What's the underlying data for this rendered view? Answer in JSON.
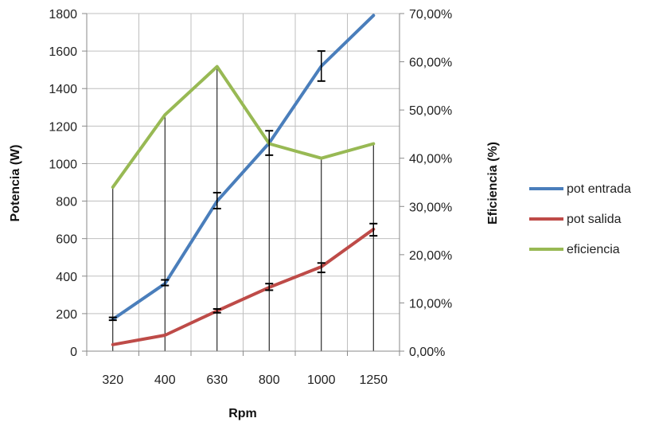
{
  "chart_data": {
    "type": "line",
    "categories": [
      "320",
      "400",
      "630",
      "800",
      "1000",
      "1250"
    ],
    "xlabel": "Rpm",
    "ylabel": "Potencia (W)",
    "y2label": "Eficiencia (%)",
    "ylim": [
      0,
      1800
    ],
    "yticks": [
      "0",
      "200",
      "400",
      "600",
      "800",
      "1000",
      "1200",
      "1400",
      "1600",
      "1800"
    ],
    "y2lim": [
      0,
      0.7
    ],
    "y2ticks": [
      "0,00%",
      "10,00%",
      "20,00%",
      "30,00%",
      "40,00%",
      "50,00%",
      "60,00%",
      "70,00%"
    ],
    "grid": true,
    "legend": "right",
    "series": [
      {
        "name": "pot entrada",
        "axis": "left",
        "color": "#4a7ebb",
        "values": [
          170,
          360,
          800,
          1110,
          1520,
          1790
        ],
        "error_bars": [
          [
            165,
            180
          ],
          [
            350,
            380
          ],
          [
            760,
            845
          ],
          [
            1045,
            1175
          ],
          [
            1440,
            1600
          ],
          null
        ]
      },
      {
        "name": "pot salida",
        "axis": "left",
        "color": "#be4b48",
        "values": [
          35,
          85,
          215,
          340,
          450,
          650
        ],
        "error_bars": [
          null,
          null,
          [
            205,
            225
          ],
          [
            325,
            360
          ],
          [
            420,
            470
          ],
          [
            615,
            680
          ]
        ]
      },
      {
        "name": "eficiencia",
        "axis": "right",
        "color": "#98b954",
        "values": [
          0.34,
          0.49,
          0.59,
          0.43,
          0.4,
          0.43
        ],
        "drop_lines": true
      }
    ]
  }
}
